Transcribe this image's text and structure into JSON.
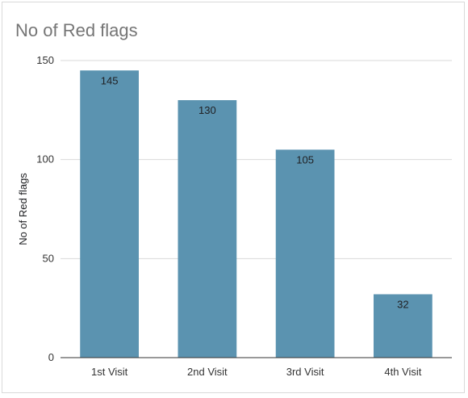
{
  "chart_data": {
    "type": "bar",
    "title": "No of Red flags",
    "xlabel": "",
    "ylabel": "No of Red flags",
    "categories": [
      "1st Visit",
      "2nd Visit",
      "3rd Visit",
      "4th Visit"
    ],
    "values": [
      145,
      130,
      105,
      32
    ],
    "data_labels": [
      "145",
      "130",
      "105",
      "32"
    ],
    "ylim": [
      0,
      150
    ],
    "yticks": [
      0,
      50,
      100,
      150
    ],
    "ytick_labels": [
      "0",
      "50",
      "100",
      "150"
    ],
    "grid": true,
    "legend": "none",
    "colors": {
      "bar": "#5b93b0",
      "grid": "#d9d9d9",
      "axis": "#333333",
      "title": "#757575"
    }
  }
}
